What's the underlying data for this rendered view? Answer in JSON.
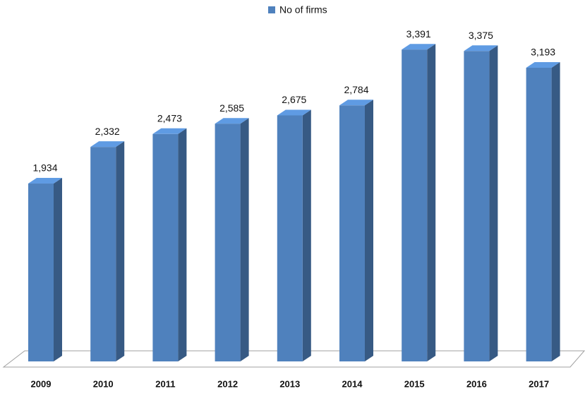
{
  "chart_data": {
    "type": "bar3d",
    "categories": [
      "2009",
      "2010",
      "2011",
      "2012",
      "2013",
      "2014",
      "2015",
      "2016",
      "2017"
    ],
    "series": [
      {
        "name": "No of firms",
        "color": "#4f81bd",
        "values": [
          1934,
          2332,
          2473,
          2585,
          2675,
          2784,
          3391,
          3375,
          3193
        ],
        "value_labels": [
          "1,934",
          "2,332",
          "2,473",
          "2,585",
          "2,675",
          "2,784",
          "3,391",
          "3,375",
          "3,193"
        ]
      }
    ],
    "ylim": [
      0,
      3500
    ],
    "legend": "top"
  }
}
